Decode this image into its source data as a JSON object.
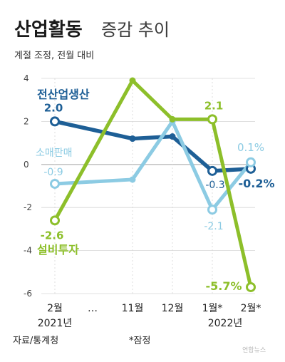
{
  "title_main": "산업활동",
  "title_rest": "증감 추이",
  "subtitle": "계절 조정, 전월 대비",
  "source": "자료/통계청",
  "footnote": "*잠정",
  "watermark": "연합뉴스",
  "colors": {
    "blue": "#1e5f96",
    "lightblue": "#8ccbe3",
    "green": "#8dbf2a",
    "grid": "#d6d6d6",
    "zero": "#bdbdbd"
  },
  "chart_data": {
    "type": "line",
    "categories": [
      "2월",
      "…",
      "11월",
      "12월",
      "1월*",
      "2월*"
    ],
    "category_sublabels": [
      "2021년",
      "",
      "",
      "",
      "2022년",
      ""
    ],
    "ylim": [
      -6,
      4
    ],
    "yticks": [
      "4",
      "2",
      "0",
      "-2",
      "-4",
      "-6"
    ],
    "grid": true,
    "series": [
      {
        "name": "전산업생산",
        "color": "#1e5f96",
        "points": [
          [
            0,
            2.0
          ],
          [
            2,
            1.2
          ],
          [
            3,
            1.3
          ],
          [
            4,
            -0.3
          ],
          [
            5,
            -0.2
          ]
        ]
      },
      {
        "name": "소매판매",
        "color": "#8ccbe3",
        "points": [
          [
            0,
            -0.9
          ],
          [
            2,
            -0.7
          ],
          [
            3,
            2.0
          ],
          [
            4,
            -2.1
          ],
          [
            5,
            0.1
          ]
        ]
      },
      {
        "name": "설비투자",
        "color": "#8dbf2a",
        "points": [
          [
            0,
            -2.6
          ],
          [
            2,
            3.9
          ],
          [
            3,
            2.1
          ],
          [
            4,
            2.1
          ],
          [
            5,
            -5.7
          ]
        ]
      }
    ],
    "data_labels": [
      {
        "text": "2.0",
        "series": 0,
        "point": 0
      },
      {
        "text": "-0.9",
        "series": 1,
        "point": 0
      },
      {
        "text": "-2.6",
        "series": 2,
        "point": 0
      },
      {
        "text": "2.1",
        "series": 2,
        "point": 3
      },
      {
        "text": "-0.3",
        "series": 0,
        "point": 3
      },
      {
        "text": "-2.1",
        "series": 1,
        "point": 3
      },
      {
        "text": "0.1%",
        "series": 1,
        "point": 4
      },
      {
        "text": "-0.2%",
        "series": 0,
        "point": 4
      },
      {
        "text": "-5.7%",
        "series": 2,
        "point": 4
      }
    ]
  }
}
